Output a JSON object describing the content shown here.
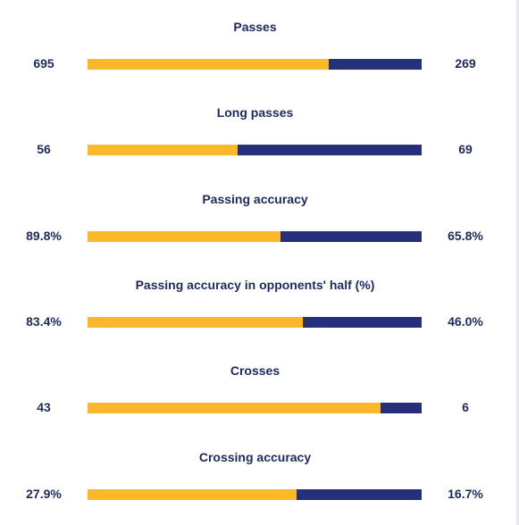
{
  "colors": {
    "home_bar": "#fbb829",
    "away_bar": "#252f7a",
    "text": "#1c2a5e",
    "background": "#ffffff"
  },
  "chart_data": {
    "type": "bar",
    "orientation": "horizontal",
    "stacked": true,
    "categories": [
      "Passes",
      "Long passes",
      "Passing accuracy",
      "Passing accuracy in opponents' half (%)",
      "Crosses",
      "Crossing accuracy"
    ],
    "stats": [
      {
        "title": "Passes",
        "left_label": "695",
        "right_label": "269",
        "left_value": 695,
        "right_value": 269
      },
      {
        "title": "Long passes",
        "left_label": "56",
        "right_label": "69",
        "left_value": 56,
        "right_value": 69
      },
      {
        "title": "Passing accuracy",
        "left_label": "89.8%",
        "right_label": "65.8%",
        "left_value": 89.8,
        "right_value": 65.8
      },
      {
        "title": "Passing accuracy in opponents' half (%)",
        "left_label": "83.4%",
        "right_label": "46.0%",
        "left_value": 83.4,
        "right_value": 46.0
      },
      {
        "title": "Crosses",
        "left_label": "43",
        "right_label": "6",
        "left_value": 43,
        "right_value": 6
      },
      {
        "title": "Crossing accuracy",
        "left_label": "27.9%",
        "right_label": "16.7%",
        "left_value": 27.9,
        "right_value": 16.7
      }
    ]
  }
}
